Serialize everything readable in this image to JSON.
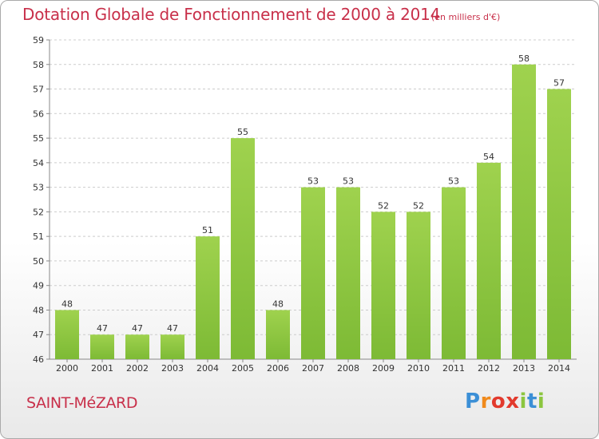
{
  "chart_data": {
    "type": "bar",
    "title": "Dotation Globale de Fonctionnement de 2000 à 2014",
    "subtitle": "(en milliers d'€)",
    "categories": [
      "2000",
      "2001",
      "2002",
      "2003",
      "2004",
      "2005",
      "2006",
      "2007",
      "2008",
      "2009",
      "2010",
      "2011",
      "2012",
      "2013",
      "2014"
    ],
    "values": [
      48,
      47,
      47,
      47,
      51,
      55,
      48,
      53,
      53,
      52,
      52,
      53,
      54,
      58,
      57
    ],
    "ylim": [
      46,
      59
    ],
    "yticks": [
      46,
      47,
      48,
      49,
      50,
      51,
      52,
      53,
      54,
      55,
      56,
      57,
      58,
      59
    ],
    "grid": true,
    "xlabel": "",
    "ylabel": "",
    "bar_color": "#7dba35",
    "bar_color_light": "#9fd24e"
  },
  "commune": "SAINT-MéZARD",
  "logo": [
    "P",
    "r",
    "o",
    "x",
    "i",
    "t",
    "i"
  ]
}
